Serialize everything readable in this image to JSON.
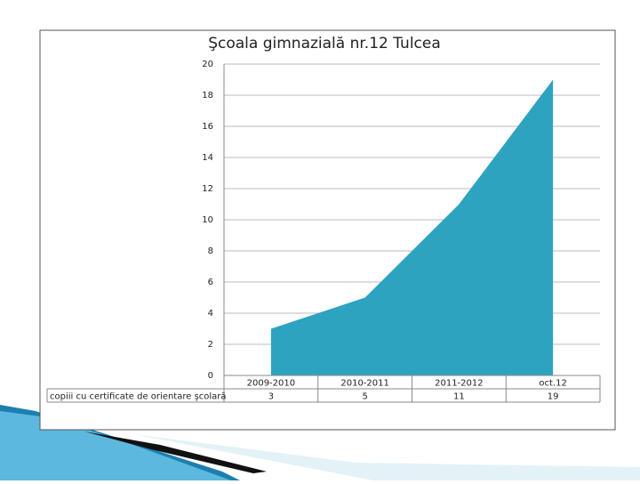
{
  "chart_data": {
    "type": "area",
    "title": "Şcoala gimnazială nr.12 Tulcea",
    "categories": [
      "2009-2010",
      "2010-2011",
      "2011-2012",
      "oct.12"
    ],
    "series": [
      {
        "name": "copiii cu certificate de orientare şcolară",
        "color": "#2ea3c0",
        "values": [
          3,
          5,
          11,
          19
        ]
      }
    ],
    "ylim": [
      0,
      20
    ],
    "yticks": [
      0,
      2,
      4,
      6,
      8,
      10,
      12,
      14,
      16,
      18,
      20
    ],
    "grid": true
  }
}
